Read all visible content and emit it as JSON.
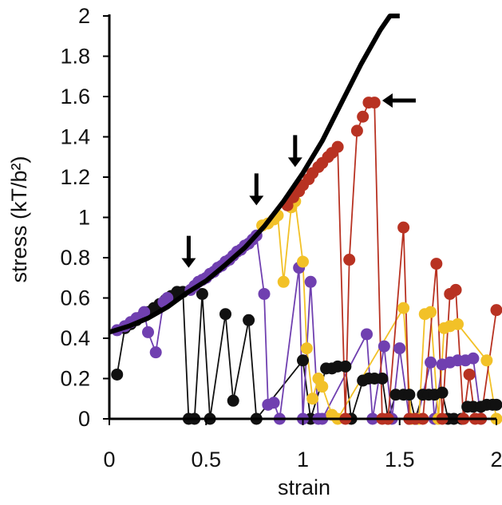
{
  "chart_data": {
    "type": "scatter",
    "xlabel": "strain",
    "ylabel": "stress (kT/b²)",
    "xlim": [
      0,
      2
    ],
    "ylim": [
      0,
      2
    ],
    "xticks": [
      "0",
      "0.5",
      "1",
      "1.5",
      "2"
    ],
    "yticks": [
      "0",
      "0.2",
      "0.4",
      "0.6",
      "0.8",
      "1",
      "1.2",
      "1.4",
      "1.6",
      "1.8",
      "2"
    ],
    "grid": false,
    "legend": "none",
    "colors": {
      "black": "#111111",
      "purple": "#7040b0",
      "yellow": "#f2c128",
      "red": "#b83222",
      "curve": "#000000"
    },
    "theory_curve": {
      "x": [
        0.0,
        0.1,
        0.2,
        0.3,
        0.4,
        0.5,
        0.6,
        0.7,
        0.8,
        0.9,
        1.0,
        1.1,
        1.2,
        1.3,
        1.4,
        1.45,
        1.5
      ],
      "y": [
        0.43,
        0.46,
        0.5,
        0.555,
        0.625,
        0.685,
        0.765,
        0.85,
        0.955,
        1.08,
        1.22,
        1.38,
        1.57,
        1.76,
        1.93,
        2.0,
        2.0
      ]
    },
    "series": [
      {
        "color": "#111111",
        "x": [
          0.04,
          0.08,
          0.11,
          0.14,
          0.17,
          0.2,
          0.23,
          0.26,
          0.29,
          0.32,
          0.35,
          0.38,
          0.41,
          0.44,
          0.48,
          0.52,
          0.6,
          0.64,
          0.72,
          0.76,
          1.0,
          1.04,
          1.12,
          1.15,
          1.18,
          1.22,
          1.25,
          1.31,
          1.34,
          1.37,
          1.41,
          1.44,
          1.48,
          1.52,
          1.55,
          1.58,
          1.62,
          1.65,
          1.68,
          1.72,
          1.75,
          1.78,
          1.82,
          1.85,
          1.88,
          1.92,
          1.95,
          1.98,
          2.0
        ],
        "y": [
          0.22,
          0.45,
          0.47,
          0.49,
          0.51,
          0.53,
          0.55,
          0.57,
          0.59,
          0.61,
          0.63,
          0.63,
          0.0,
          0.0,
          0.62,
          0.0,
          0.52,
          0.09,
          0.49,
          0.0,
          0.29,
          0.0,
          0.25,
          0.25,
          0.26,
          0.26,
          0.0,
          0.19,
          0.2,
          0.2,
          0.2,
          0.0,
          0.12,
          0.12,
          0.12,
          0.0,
          0.12,
          0.12,
          0.12,
          0.13,
          0.0,
          0.0,
          0.0,
          0.06,
          0.06,
          0.06,
          0.07,
          0.07,
          0.07
        ]
      },
      {
        "color": "#7040b0",
        "x": [
          0.04,
          0.08,
          0.11,
          0.14,
          0.18,
          0.2,
          0.24,
          0.28,
          0.3,
          0.42,
          0.44,
          0.46,
          0.48,
          0.5,
          0.52,
          0.54,
          0.56,
          0.58,
          0.6,
          0.62,
          0.64,
          0.66,
          0.68,
          0.7,
          0.72,
          0.74,
          0.76,
          0.8,
          0.82,
          0.85,
          0.88,
          0.98,
          1.0,
          1.04,
          1.08,
          1.1,
          1.33,
          1.36,
          1.42,
          1.46,
          1.5,
          1.55,
          1.59,
          1.66,
          1.68,
          1.72,
          1.76,
          1.8,
          1.84,
          1.88,
          1.92
        ],
        "y": [
          0.44,
          0.46,
          0.48,
          0.5,
          0.53,
          0.43,
          0.33,
          0.58,
          0.6,
          0.64,
          0.66,
          0.68,
          0.69,
          0.7,
          0.72,
          0.73,
          0.75,
          0.76,
          0.78,
          0.79,
          0.81,
          0.83,
          0.84,
          0.86,
          0.87,
          0.89,
          0.91,
          0.62,
          0.07,
          0.08,
          0.0,
          0.75,
          0.0,
          0.68,
          0.0,
          0.0,
          0.42,
          0.0,
          0.36,
          0.0,
          0.35,
          0.0,
          0.0,
          0.28,
          0.0,
          0.27,
          0.28,
          0.29,
          0.29,
          0.3,
          0.0
        ]
      },
      {
        "color": "#f2c128",
        "x": [
          0.79,
          0.82,
          0.85,
          0.87,
          0.9,
          0.94,
          0.96,
          1.0,
          1.02,
          1.05,
          1.08,
          1.1,
          1.15,
          1.18,
          1.52,
          1.56,
          1.6,
          1.63,
          1.66,
          1.7,
          1.73,
          1.76,
          1.8,
          1.95,
          2.0
        ],
        "y": [
          0.96,
          0.97,
          0.99,
          1.01,
          0.68,
          1.05,
          1.08,
          0.78,
          0.35,
          0.1,
          0.2,
          0.16,
          0.02,
          0.0,
          0.55,
          0.0,
          0.0,
          0.52,
          0.53,
          0.0,
          0.45,
          0.46,
          0.47,
          0.29,
          0.0
        ]
      },
      {
        "color": "#b83222",
        "x": [
          0.92,
          0.95,
          0.98,
          1.0,
          1.03,
          1.05,
          1.08,
          1.1,
          1.13,
          1.15,
          1.18,
          1.22,
          1.24,
          1.28,
          1.31,
          1.34,
          1.37,
          1.41,
          1.44,
          1.52,
          1.55,
          1.58,
          1.62,
          1.69,
          1.72,
          1.76,
          1.79,
          1.83,
          1.86,
          1.89,
          1.92,
          2.0
        ],
        "y": [
          1.06,
          1.1,
          1.13,
          1.16,
          1.19,
          1.22,
          1.25,
          1.27,
          1.3,
          1.32,
          1.35,
          0.0,
          0.79,
          1.43,
          1.5,
          1.57,
          1.57,
          0.0,
          0.0,
          0.95,
          0.0,
          0.0,
          0.0,
          0.77,
          0.0,
          0.62,
          0.64,
          0.0,
          0.22,
          0.0,
          0.0,
          0.54
        ]
      }
    ],
    "arrows": [
      {
        "x": 0.41,
        "y": 0.75,
        "direction": "down"
      },
      {
        "x": 0.76,
        "y": 1.06,
        "direction": "down"
      },
      {
        "x": 0.96,
        "y": 1.25,
        "direction": "down"
      },
      {
        "x": 1.41,
        "y": 1.58,
        "direction": "left"
      }
    ]
  }
}
